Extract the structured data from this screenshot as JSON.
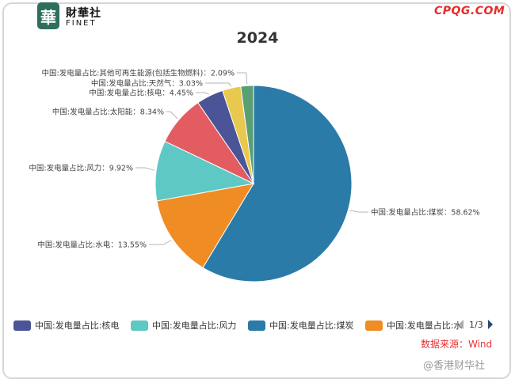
{
  "brand": {
    "seal_char": "華",
    "name_cn": "財華社",
    "name_en": "FINET",
    "site": "CPQG.COM"
  },
  "chart_data": {
    "type": "pie",
    "title": "2024",
    "slices": [
      {
        "name": "中国:发电量占比:煤炭",
        "value": 58.62,
        "label": "中国:发电量占比:煤炭：58.62%",
        "color": "#2a7ba8"
      },
      {
        "name": "中国:发电量占比:水电",
        "value": 13.55,
        "label": "中国:发电量占比:水电：13.55%",
        "color": "#f08c24"
      },
      {
        "name": "中国:发电量占比:风力",
        "value": 9.92,
        "label": "中国:发电量占比:风力：9.92%",
        "color": "#5ec8c4"
      },
      {
        "name": "中国:发电量占比:太阳能",
        "value": 8.34,
        "label": "中国:发电量占比:太阳能：8.34%",
        "color": "#e35c61"
      },
      {
        "name": "中国:发电量占比:核电",
        "value": 4.45,
        "label": "中国:发电量占比:核电：4.45%",
        "color": "#4a5496"
      },
      {
        "name": "中国:发电量占比:天然气",
        "value": 3.03,
        "label": "中国:发电量占比:天然气：3.03%",
        "color": "#e8c84e"
      },
      {
        "name": "中国:发电量占比:其他可再生能源(包括生物燃料)",
        "value": 2.09,
        "label": "中国:发电量占比:其他可再生能源(包括生物燃料)：2.09%",
        "color": "#5a9e74"
      }
    ],
    "legend": {
      "visible_items": [
        {
          "label": "中国:发电量占比:核电",
          "color": "#4a5496"
        },
        {
          "label": "中国:发电量占比:风力",
          "color": "#5ec8c4"
        },
        {
          "label": "中国:发电量占比:煤炭",
          "color": "#2a7ba8"
        },
        {
          "label": "中国:发电量占比:水电",
          "color": "#f08c24"
        }
      ],
      "position": "bottom",
      "page": "1/3"
    }
  },
  "source_note": "数据来源：Wind",
  "footer": "@香港财华社"
}
